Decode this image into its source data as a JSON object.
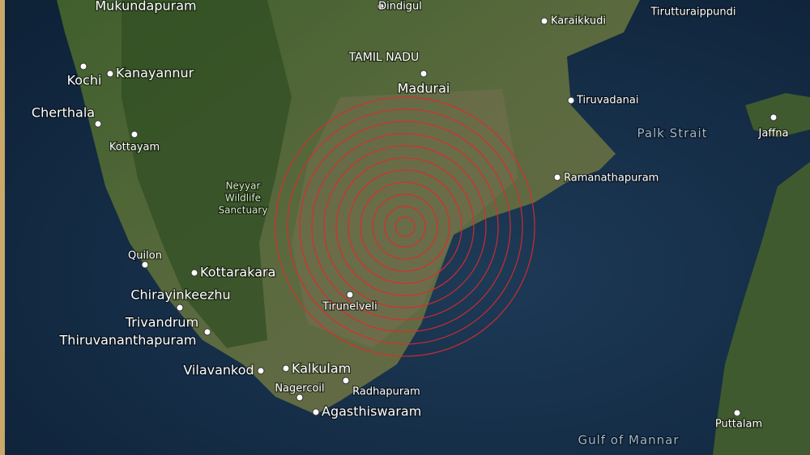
{
  "map": {
    "places": [
      {
        "label": "Mukundapuram",
        "kind": "town"
      },
      {
        "label": "Dindigul",
        "kind": "small"
      },
      {
        "label": "Tirutturaippundi",
        "kind": "small"
      },
      {
        "label": "Karaikkudi",
        "kind": "small"
      },
      {
        "label": "TAMIL NADU",
        "kind": "region"
      },
      {
        "label": "Madurai",
        "kind": "town"
      },
      {
        "label": "Kochi",
        "kind": "town"
      },
      {
        "label": "Kanayannur",
        "kind": "town"
      },
      {
        "label": "Cherthala",
        "kind": "town"
      },
      {
        "label": "Tiruvadanai",
        "kind": "small"
      },
      {
        "label": "Palk Strait",
        "kind": "water"
      },
      {
        "label": "Jaffna",
        "kind": "small"
      },
      {
        "label": "Kottayam",
        "kind": "small"
      },
      {
        "label": "Neyyar Wildlife Sanctuary",
        "kind": "park"
      },
      {
        "label": "Ramanathapuram",
        "kind": "small"
      },
      {
        "label": "Quilon",
        "kind": "small"
      },
      {
        "label": "Kottarakara",
        "kind": "town"
      },
      {
        "label": "Chirayinkeezhu",
        "kind": "town"
      },
      {
        "label": "Trivandrum",
        "kind": "town"
      },
      {
        "label": "Thiruvananthapuram",
        "kind": "town"
      },
      {
        "label": "Tirunelveli",
        "kind": "small"
      },
      {
        "label": "Vilavankod",
        "kind": "town"
      },
      {
        "label": "Kalkulam",
        "kind": "town"
      },
      {
        "label": "Nagercoil",
        "kind": "small"
      },
      {
        "label": "Radhapuram",
        "kind": "small"
      },
      {
        "label": "Agasthiswaram",
        "kind": "town"
      },
      {
        "label": "Gulf of Mannar",
        "kind": "water"
      },
      {
        "label": "Puttalam",
        "kind": "small"
      }
    ]
  }
}
